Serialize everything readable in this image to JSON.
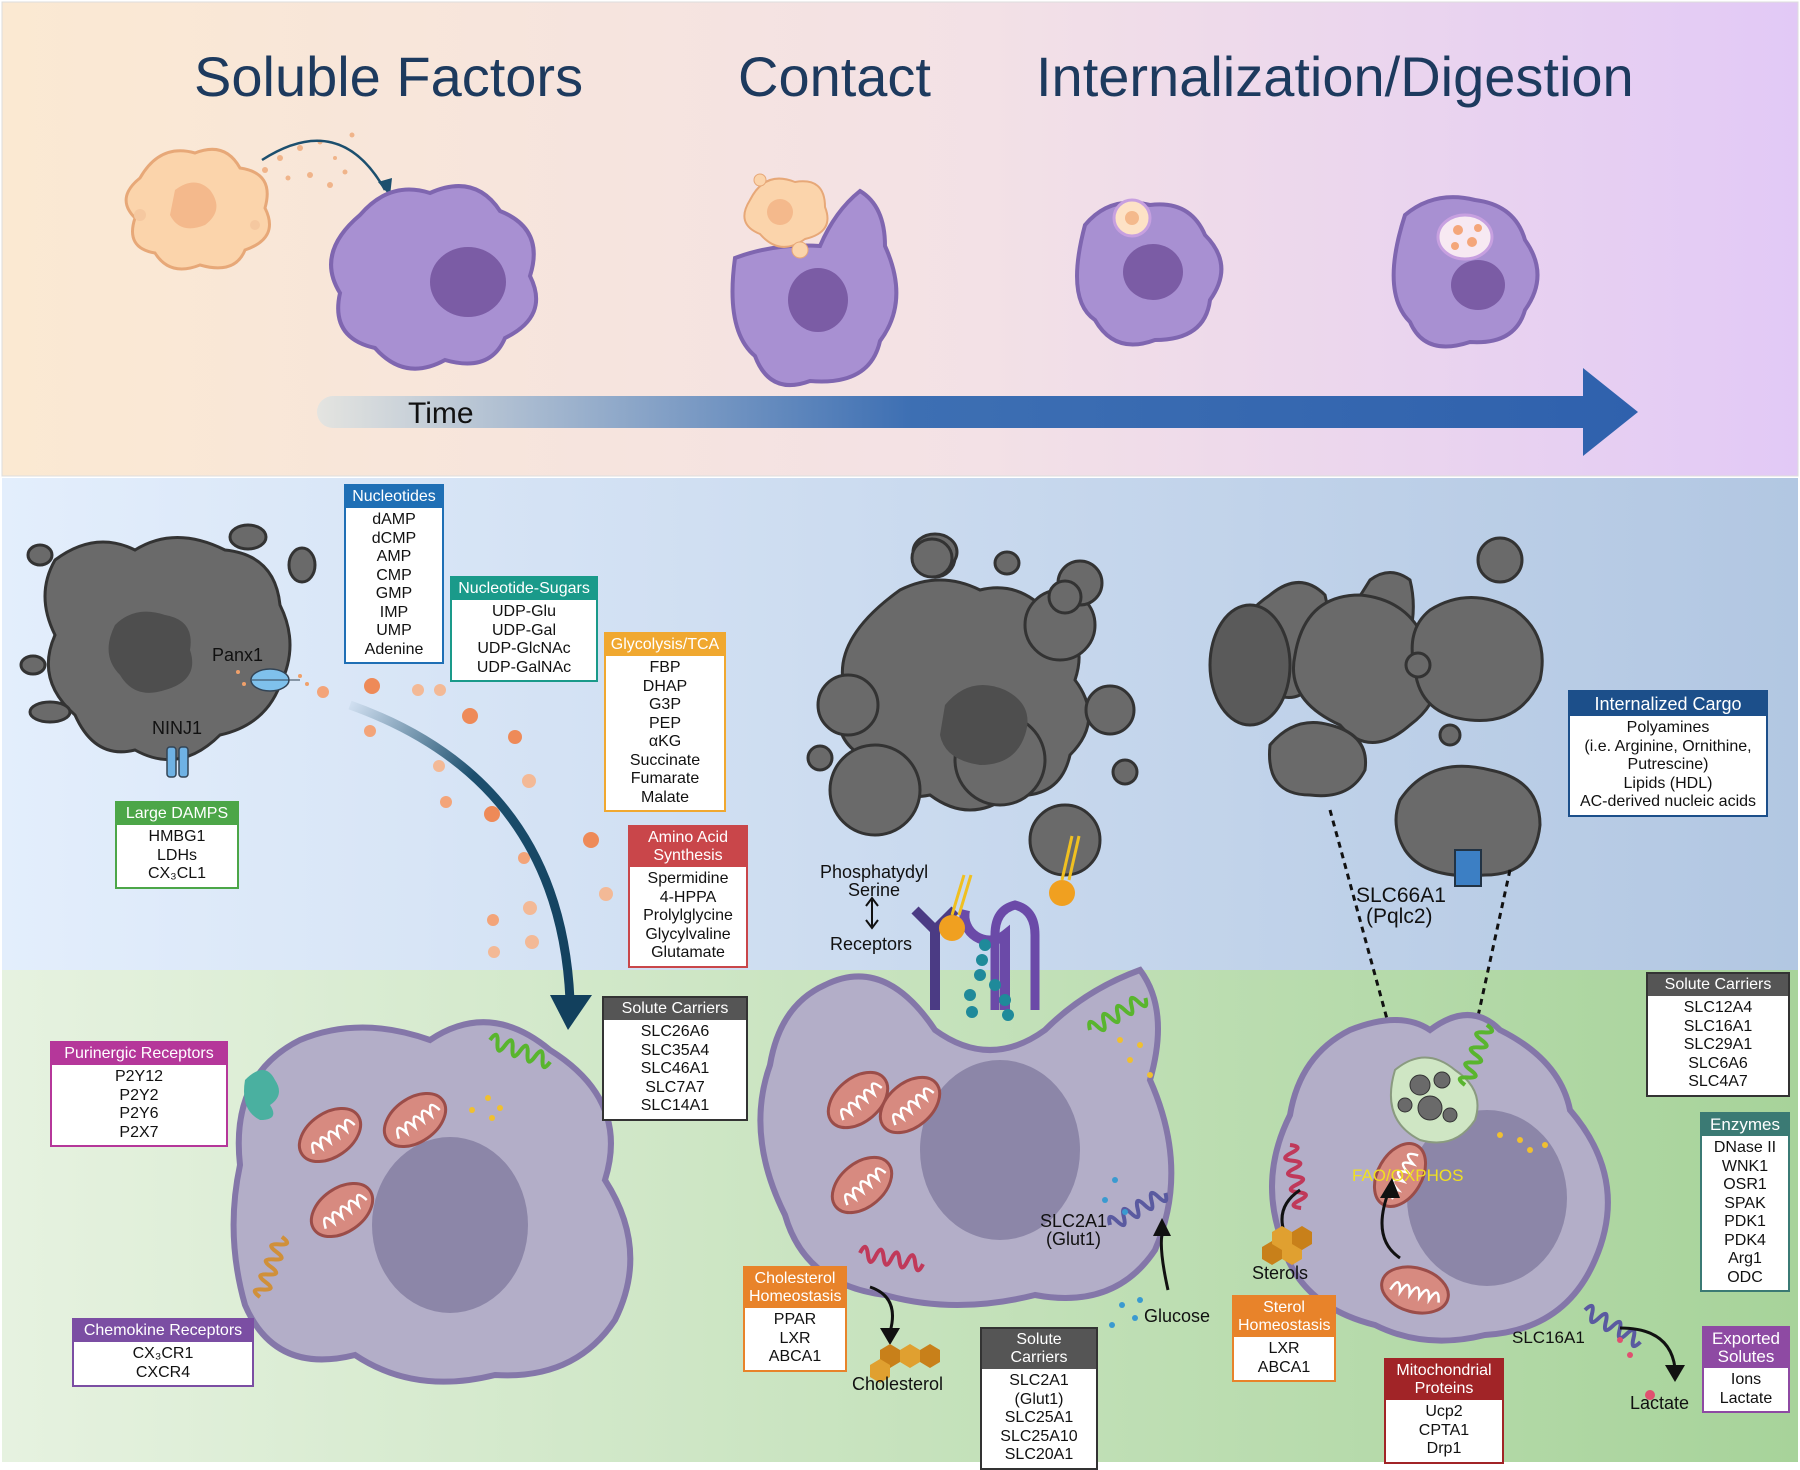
{
  "headers": {
    "soluble": "Soluble Factors",
    "contact": "Contact",
    "internalization": "Internalization/Digestion"
  },
  "time_label": "Time",
  "labels": {
    "panx1": "Panx1",
    "ninj1": "NINJ1",
    "ps_line1": "Phosphatydyl",
    "ps_line2": "Serine",
    "receptors": "Receptors",
    "slc66a1": "SLC66A1",
    "pqlc2": "(Pqlc2)",
    "slc2a1": "SLC2A1",
    "glut1": "(Glut1)",
    "glucose": "Glucose",
    "cholesterol": "Cholesterol",
    "sterols": "Sterols",
    "faooxphos": "FAO/OXPHOS",
    "slc16a1": "SLC16A1",
    "lactate": "Lactate"
  },
  "boxes": {
    "nucleotides": {
      "title": "Nucleotides",
      "items": [
        "dAMP",
        "dCMP",
        "AMP",
        "CMP",
        "GMP",
        "IMP",
        "UMP",
        "Adenine"
      ]
    },
    "sugars": {
      "title": "Nucleotide-Sugars",
      "items": [
        "UDP-Glu",
        "UDP-Gal",
        "UDP-GlcNAc",
        "UDP-GalNAc"
      ]
    },
    "glycolysis": {
      "title": "Glycolysis/TCA",
      "items": [
        "FBP",
        "DHAP",
        "G3P",
        "PEP",
        "αKG",
        "Succinate",
        "Fumarate",
        "Malate"
      ]
    },
    "aminoacid": {
      "title": "Amino Acid Synthesis",
      "items": [
        "Spermidine",
        "4-HPPA",
        "Prolylglycine",
        "Glycylvaline",
        "Glutamate"
      ]
    },
    "damps": {
      "title": "Large DAMPS",
      "items": [
        "HMBG1",
        "LDHs",
        "CX₃CL1"
      ]
    },
    "purinergic": {
      "title": "Purinergic Receptors",
      "items": [
        "P2Y12",
        "P2Y2",
        "P2Y6",
        "P2X7"
      ]
    },
    "chemokine": {
      "title": "Chemokine Receptors",
      "items": [
        "CX₃CR1",
        "CXCR4"
      ]
    },
    "solute1": {
      "title": "Solute Carriers",
      "items": [
        "SLC26A6",
        "SLC35A4",
        "SLC46A1",
        "SLC7A7",
        "SLC14A1"
      ]
    },
    "cholhomeo": {
      "title": "Cholesterol Homeostasis",
      "items": [
        "PPAR",
        "LXR",
        "ABCA1"
      ]
    },
    "solute2": {
      "title": "Solute Carriers",
      "items": [
        "SLC2A1",
        "(Glut1)",
        "SLC25A1",
        "SLC25A10",
        "SLC20A1"
      ]
    },
    "internalized": {
      "title": "Internalized Cargo",
      "items": [
        "Polyamines",
        "(i.e. Arginine, Ornithine,",
        "Putrescine)",
        "Lipids (HDL)",
        "AC-derived nucleic acids"
      ]
    },
    "solute3": {
      "title": "Solute Carriers",
      "items": [
        "SLC12A4",
        "SLC16A1",
        "SLC29A1",
        "SLC6A6",
        "SLC4A7"
      ]
    },
    "enzymes": {
      "title": "Enzymes",
      "items": [
        "DNase II",
        "WNK1",
        "OSR1",
        "SPAK",
        "PDK1",
        "PDK4",
        "Arg1",
        "ODC"
      ]
    },
    "sterolhomeo": {
      "title": "Sterol Homeostasis",
      "items": [
        "LXR",
        "ABCA1"
      ]
    },
    "mito": {
      "title": "Mitochondrial Proteins",
      "items": [
        "Ucp2",
        "CPTA1",
        "Drp1"
      ]
    },
    "exported": {
      "title": "Exported Solutes",
      "items": [
        "Ions",
        "Lactate"
      ]
    }
  },
  "colors": {
    "nucleotides": "#1f6fb5",
    "sugars": "#1a9a8a",
    "glycolysis": "#f0a830",
    "aminoacid": "#c9464a",
    "damps": "#4ca648",
    "purinergic": "#b5379a",
    "chemokine": "#7b4ea3",
    "solute": "#555555",
    "cholhomeo": "#e8832a",
    "internalized": "#1c4f8a",
    "enzymes": "#3b7a74",
    "mito": "#a12427",
    "exported": "#8e4aa3"
  }
}
